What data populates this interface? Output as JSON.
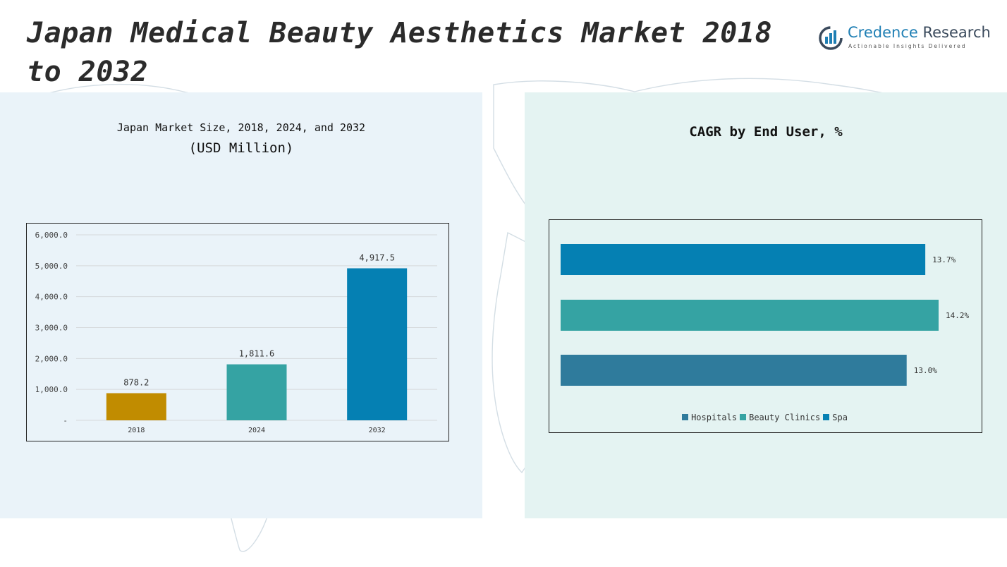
{
  "page": {
    "title": "Japan Medical Beauty Aesthetics Market 2018 to 2032"
  },
  "logo": {
    "name_primary": "Credence",
    "name_secondary": "Research",
    "tagline": "Actionable Insights Delivered",
    "icon": "bar-chart-circle-icon",
    "color": "#1f7fb4"
  },
  "chart_data": [
    {
      "type": "bar",
      "title": "Japan Market Size, 2018, 2024, and 2032",
      "subtitle": "(USD Million)",
      "categories": [
        "2018",
        "2024",
        "2032"
      ],
      "values": [
        878.2,
        1811.6,
        4917.5
      ],
      "value_labels": [
        "878.2",
        "1,811.6",
        "4,917.5"
      ],
      "colors": [
        "#c18c00",
        "#35a3a3",
        "#0580b3"
      ],
      "ylim": [
        0,
        6000
      ],
      "yticks": [
        0,
        1000,
        2000,
        3000,
        4000,
        5000,
        6000
      ],
      "ytick_labels": [
        "-",
        "1,000.0",
        "2,000.0",
        "3,000.0",
        "4,000.0",
        "5,000.0",
        "6,000.0"
      ],
      "grid": true,
      "legend": "none"
    },
    {
      "type": "bar",
      "orientation": "horizontal",
      "title": "CAGR by End User, %",
      "series": [
        {
          "name": "Spa",
          "value": 13.7,
          "label": "13.7%",
          "color": "#0580b3"
        },
        {
          "name": "Beauty Clinics",
          "value": 14.2,
          "label": "14.2%",
          "color": "#35a3a3"
        },
        {
          "name": "Hospitals",
          "value": 13.0,
          "label": "13.0%",
          "color": "#2f7b9c"
        }
      ],
      "legend_order": [
        "Hospitals",
        "Beauty Clinics",
        "Spa"
      ],
      "legend": "bottom",
      "grid": false
    }
  ]
}
